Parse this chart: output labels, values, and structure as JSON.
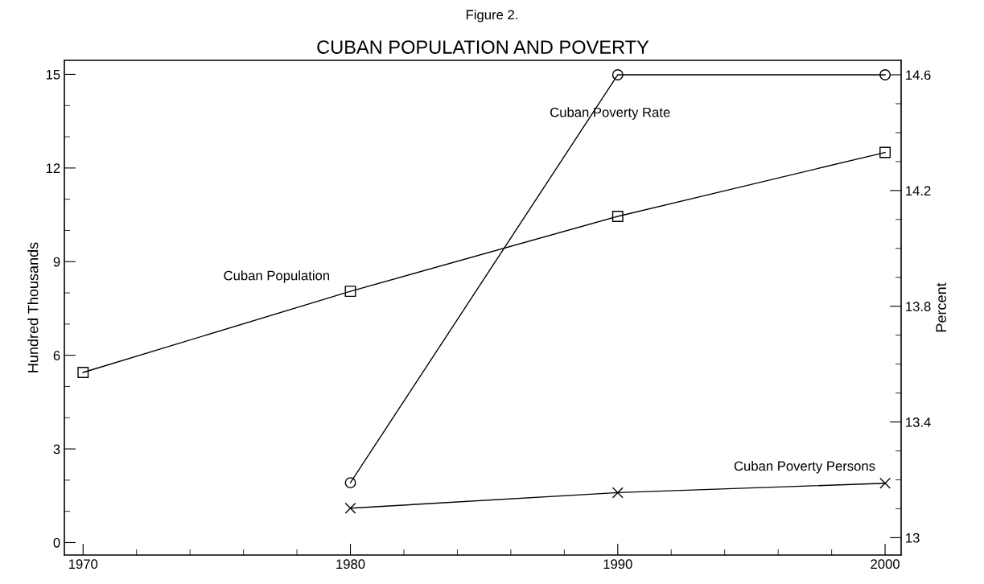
{
  "chart_data": {
    "type": "line",
    "subtitle": "Figure 2.",
    "title": "CUBAN POPULATION AND POVERTY",
    "ylabel": "Hundred Thousands",
    "y2label": "Percent",
    "x": [
      1970,
      1980,
      1990,
      2000
    ],
    "series": [
      {
        "name": "Cuban Population",
        "color": "#000000",
        "marker": "square",
        "values": [
          5.45,
          8.05,
          10.45,
          12.5
        ]
      },
      {
        "name": "Cuban Poverty Rate",
        "color": "#000000",
        "marker": "circle",
        "axis": "y2",
        "values": [
          null,
          13.19,
          14.6,
          14.6
        ]
      },
      {
        "name": "Cuban Poverty Persons",
        "color": "#000000",
        "marker": "cross",
        "values": [
          null,
          1.1,
          1.6,
          1.9
        ]
      }
    ],
    "xlim": [
      1969.3,
      2000.6
    ],
    "xticks": [
      1970,
      1980,
      1990,
      2000
    ],
    "ylim": [
      -0.4,
      15.45
    ],
    "yticks": [
      0,
      3,
      6,
      9,
      12,
      15
    ],
    "y2lim": [
      12.94,
      14.65
    ],
    "y2ticks": [
      13,
      {
        "value": 13.4,
        "label": "13.4"
      },
      {
        "value": 13.8,
        "label": "13.8"
      },
      {
        "value": 14.2,
        "label": "14.2"
      },
      {
        "value": 14.6,
        "label": "14.6"
      }
    ],
    "grid": false,
    "legend": false,
    "line_style": "solid"
  }
}
